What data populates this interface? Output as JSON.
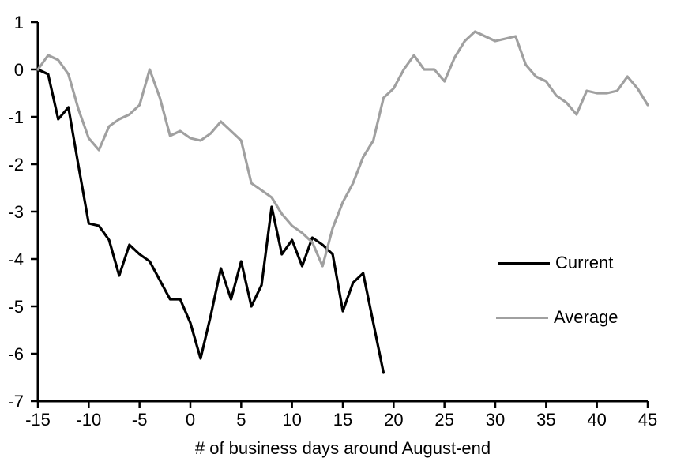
{
  "chart_data": {
    "type": "line",
    "title": "",
    "x_label": "# of business days around August-end",
    "y_label": "",
    "xlim": [
      -15,
      45
    ],
    "ylim": [
      -7,
      1
    ],
    "x_ticks": [
      -15,
      -10,
      -5,
      0,
      5,
      10,
      15,
      20,
      25,
      30,
      35,
      40,
      45
    ],
    "y_ticks": [
      1,
      0,
      -1,
      -2,
      -3,
      -4,
      -5,
      -6,
      -7
    ],
    "grid": false,
    "legend_position": "middle-right",
    "axis_color": "#000000",
    "series": [
      {
        "name": "Current",
        "color": "#000000",
        "x_start": -15,
        "x_step": 1,
        "values": [
          0,
          -0.1,
          -1.05,
          -0.8,
          -2.05,
          -3.25,
          -3.3,
          -3.6,
          -4.35,
          -3.7,
          -3.9,
          -4.05,
          -4.45,
          -4.85,
          -4.85,
          -5.35,
          -6.1,
          -5.2,
          -4.2,
          -4.85,
          -4.05,
          -5.0,
          -4.55,
          -2.9,
          -3.9,
          -3.6,
          -4.15,
          -3.55,
          -3.7,
          -3.9,
          -5.1,
          -4.5,
          -4.3,
          -5.35,
          -6.4
        ]
      },
      {
        "name": "Average",
        "color": "#a0a0a0",
        "x_start": -15,
        "x_step": 1,
        "values": [
          0,
          0.3,
          0.2,
          -0.1,
          -0.85,
          -1.45,
          -1.7,
          -1.2,
          -1.05,
          -0.95,
          -0.75,
          0,
          -0.6,
          -1.4,
          -1.3,
          -1.45,
          -1.5,
          -1.35,
          -1.1,
          -1.3,
          -1.5,
          -2.4,
          -2.55,
          -2.7,
          -3.05,
          -3.3,
          -3.45,
          -3.65,
          -4.15,
          -3.35,
          -2.8,
          -2.4,
          -1.85,
          -1.5,
          -0.6,
          -0.4,
          0,
          0.3,
          0,
          0,
          -0.25,
          0.25,
          0.6,
          0.8,
          0.7,
          0.6,
          0.65,
          0.7,
          0.1,
          -0.15,
          -0.25,
          -0.55,
          -0.7,
          -0.95,
          -0.45,
          -0.5,
          -0.5,
          -0.45,
          -0.15,
          -0.4,
          -0.75
        ]
      }
    ]
  }
}
